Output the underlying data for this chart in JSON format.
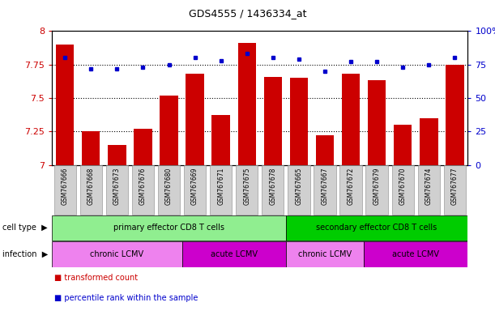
{
  "title": "GDS4555 / 1436334_at",
  "samples": [
    "GSM767666",
    "GSM767668",
    "GSM767673",
    "GSM767676",
    "GSM767680",
    "GSM767669",
    "GSM767671",
    "GSM767675",
    "GSM767678",
    "GSM767665",
    "GSM767667",
    "GSM767672",
    "GSM767679",
    "GSM767670",
    "GSM767674",
    "GSM767677"
  ],
  "transformed_count": [
    7.9,
    7.25,
    7.15,
    7.27,
    7.52,
    7.68,
    7.37,
    7.91,
    7.66,
    7.65,
    7.22,
    7.68,
    7.63,
    7.3,
    7.35,
    7.75
  ],
  "percentile_rank": [
    80,
    72,
    72,
    73,
    75,
    80,
    78,
    83,
    80,
    79,
    70,
    77,
    77,
    73,
    75,
    80
  ],
  "ylim_left": [
    7.0,
    8.0
  ],
  "ylim_right": [
    0,
    100
  ],
  "yticks_left": [
    7.0,
    7.25,
    7.5,
    7.75,
    8.0
  ],
  "yticks_right": [
    0,
    25,
    50,
    75,
    100
  ],
  "ytick_labels_left": [
    "7",
    "7.25",
    "7.5",
    "7.75",
    "8"
  ],
  "ytick_labels_right": [
    "0",
    "25",
    "50",
    "75",
    "100%"
  ],
  "bar_color": "#cc0000",
  "dot_color": "#0000cc",
  "cell_type_groups": [
    {
      "label": "primary effector CD8 T cells",
      "start": 0,
      "end": 9,
      "color": "#90ee90"
    },
    {
      "label": "secondary effector CD8 T cells",
      "start": 9,
      "end": 16,
      "color": "#00cc00"
    }
  ],
  "infection_groups": [
    {
      "label": "chronic LCMV",
      "start": 0,
      "end": 5,
      "color": "#ee82ee"
    },
    {
      "label": "acute LCMV",
      "start": 5,
      "end": 9,
      "color": "#cc00cc"
    },
    {
      "label": "chronic LCMV",
      "start": 9,
      "end": 12,
      "color": "#ee82ee"
    },
    {
      "label": "acute LCMV",
      "start": 12,
      "end": 16,
      "color": "#cc00cc"
    }
  ],
  "legend_items": [
    {
      "label": "transformed count",
      "color": "#cc0000"
    },
    {
      "label": "percentile rank within the sample",
      "color": "#0000cc"
    }
  ],
  "bg_color": "#ffffff",
  "tick_label_color_left": "#cc0000",
  "tick_label_color_right": "#0000cc",
  "xticklabel_bg": "#d0d0d0",
  "xticklabel_border": "#888888"
}
